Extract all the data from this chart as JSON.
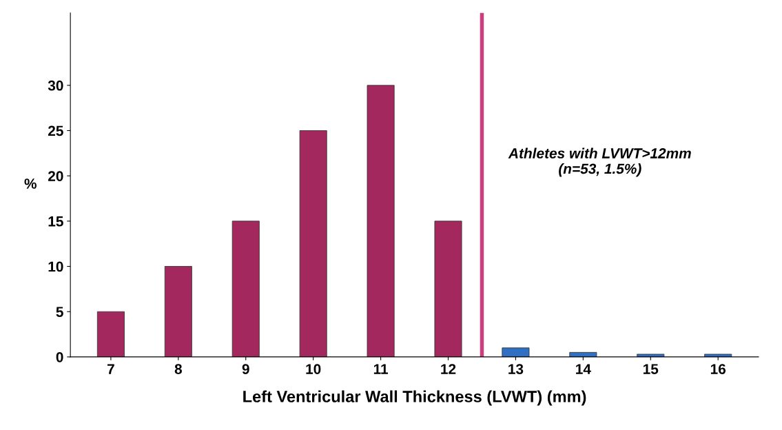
{
  "chart_data": {
    "type": "bar",
    "x": [
      7,
      8,
      9,
      10,
      11,
      12,
      13,
      14,
      15,
      16
    ],
    "values": [
      5,
      10,
      15,
      25,
      30,
      15,
      1,
      0.5,
      0.3,
      0.3
    ],
    "colors": [
      "#a3285e",
      "#a3285e",
      "#a3285e",
      "#a3285e",
      "#a3285e",
      "#a3285e",
      "#2f6fc4",
      "#2f6fc4",
      "#2f6fc4",
      "#2f6fc4"
    ],
    "xlabel": "Left Ventricular Wall Thickness (LVWT) (mm)",
    "ylabel": "%",
    "xlim": [
      6.4,
      16.6
    ],
    "xticks": [
      7,
      8,
      9,
      10,
      11,
      12,
      13,
      14,
      15,
      16
    ],
    "ylim": [
      0,
      38
    ],
    "yticks": [
      0,
      5,
      10,
      15,
      20,
      25,
      30
    ],
    "ref_lines": [
      {
        "axis": "x",
        "value": 12.5,
        "label": "Athletes with LVWT>12mm\n(n=53, 1.5%)",
        "color": "#c8417e"
      }
    ],
    "grid": false
  }
}
